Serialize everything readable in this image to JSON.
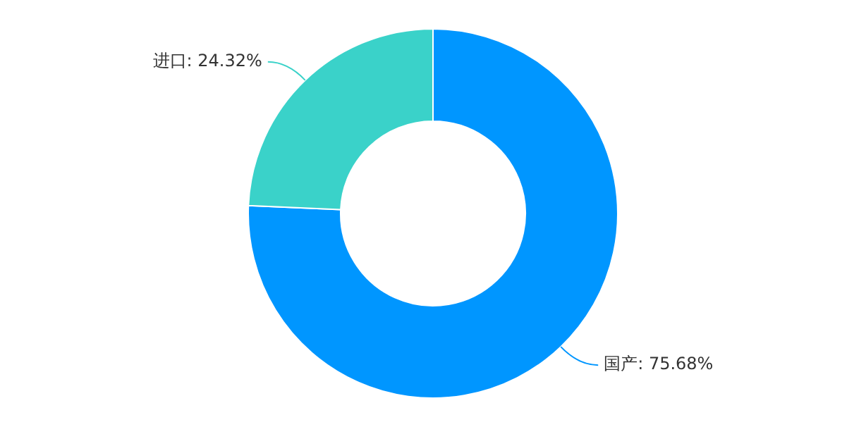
{
  "chart_data": {
    "type": "donut",
    "categories": [
      "国产",
      "进口"
    ],
    "values": [
      75.68,
      24.32
    ],
    "colors": [
      "#0096ff",
      "#3ad2c9"
    ],
    "value_labels": [
      "75.68%",
      "24.32%"
    ],
    "legend": false
  }
}
